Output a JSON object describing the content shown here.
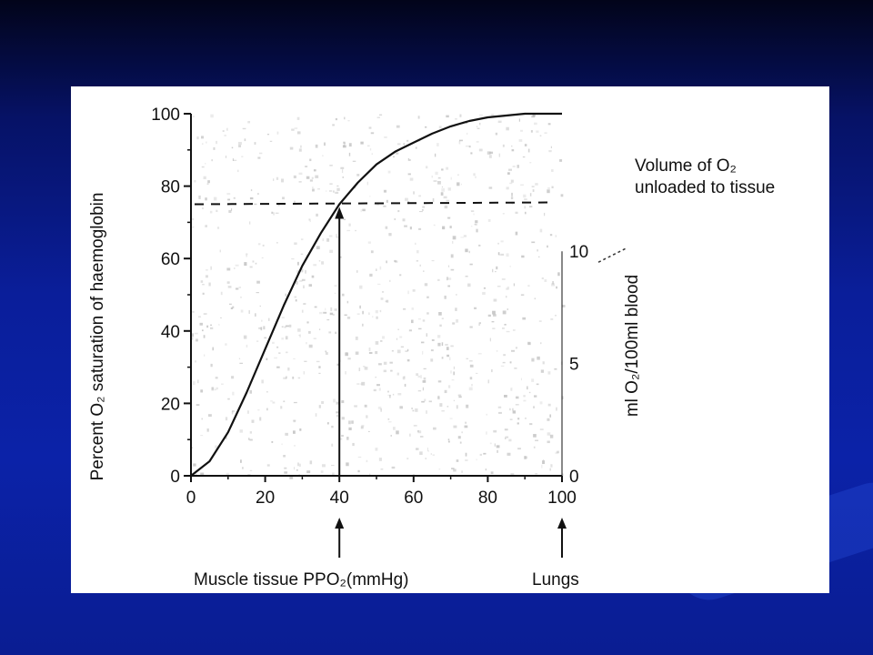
{
  "chart_data": {
    "type": "line",
    "ylabel": "Percent O₂ saturation of haemoglobin",
    "xlabel": "Muscle tissue PPO₂(mmHg)",
    "right_axis_label": "ml O₂/100ml blood",
    "right_ticks": [
      "10",
      "5",
      "0"
    ],
    "x_ticks": [
      0,
      20,
      40,
      60,
      80,
      100
    ],
    "y_ticks": [
      0,
      20,
      40,
      60,
      80,
      100
    ],
    "xlim": [
      0,
      100
    ],
    "ylim": [
      0,
      100
    ],
    "series": [
      {
        "x": [
          0,
          5,
          10,
          15,
          20,
          25,
          30,
          35,
          40,
          45,
          50,
          55,
          60,
          65,
          70,
          75,
          80,
          85,
          90,
          95,
          100
        ],
        "values": [
          0,
          4,
          12,
          23,
          35,
          47,
          58,
          67,
          75,
          81,
          86,
          89.5,
          92,
          94.5,
          96.5,
          98,
          99,
          99.5,
          100,
          100,
          100
        ]
      }
    ],
    "dashed_level": 75,
    "marker_x": 40,
    "annotation_volume": [
      "Volume of O₂",
      "unloaded to tissue"
    ],
    "annotation_lungs": "Lungs",
    "grid": false
  },
  "colors": {
    "slide_background": "#0a1e9a",
    "panel": "#ffffff",
    "ink": "#111111"
  }
}
